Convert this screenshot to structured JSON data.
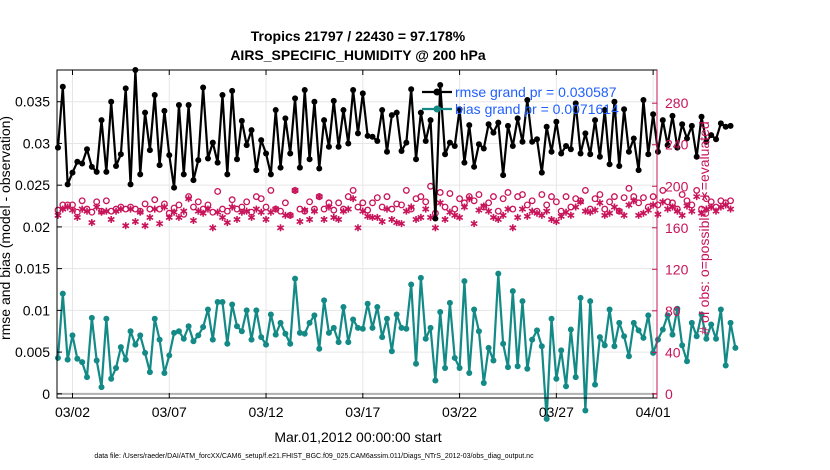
{
  "chart_data": {
    "type": "line",
    "title_line1": "Tropics 21797 / 22430 = 97.178%",
    "title_line2": "AIRS_SPECIFIC_HUMIDITY @ 200 hPa",
    "xlabel": "Mar.01,2012 00:00:00 start",
    "ylabel_left": "rmse and bias (model - observation)",
    "ylabel_right": "# of obs: o=possible; ∗=evaluated",
    "xtick_labels": [
      "03/02",
      "03/07",
      "03/12",
      "03/17",
      "03/22",
      "03/27",
      "04/01"
    ],
    "xtick_days": [
      1,
      6,
      11,
      16,
      21,
      26,
      31
    ],
    "xlim_days": [
      0.2,
      31.2
    ],
    "yleft_ticks": [
      "0",
      "0.005",
      "0.01",
      "0.015",
      "0.02",
      "0.025",
      "0.03",
      "0.035"
    ],
    "yleft_values": [
      0,
      0.005,
      0.01,
      0.015,
      0.02,
      0.025,
      0.03,
      0.035
    ],
    "yleft_lim": [
      -0.0005,
      0.0388
    ],
    "yright_ticks": [
      "0",
      "40",
      "80",
      "120",
      "160",
      "200",
      "240",
      "280"
    ],
    "yright_values": [
      0,
      40,
      80,
      120,
      160,
      200,
      240,
      280
    ],
    "yright_lim": [
      -4,
      312
    ],
    "legend": [
      {
        "label": "rmse grand pr = 0.030587",
        "color": "#000000"
      },
      {
        "label": "bias grand pr = 0.0071614",
        "color": "#138a86"
      }
    ],
    "footer": "data file: /Users/raeder/DAI/ATM_forcXX/CAM6_setup/f.e21.FHIST_BGC.f09_025.CAM6assim.011/Diags_NTrS_2012-03/obs_diag_output.nc",
    "colors": {
      "rmse": "#000000",
      "bias": "#138a86",
      "obs": "#c8145a",
      "zero": "#b0b0b0"
    },
    "series": [
      {
        "name": "rmse",
        "x_start": 0.25,
        "x_step": 0.25,
        "values": [
          0.0295,
          0.0368,
          0.0251,
          0.0265,
          0.0278,
          0.0276,
          0.0293,
          0.0272,
          0.0266,
          0.0328,
          0.0266,
          0.035,
          0.0273,
          0.0287,
          0.0366,
          0.0251,
          0.0388,
          0.0263,
          0.0337,
          0.0292,
          0.0358,
          0.0274,
          0.0339,
          0.0286,
          0.0247,
          0.0346,
          0.0263,
          0.0346,
          0.0256,
          0.028,
          0.0367,
          0.0282,
          0.0301,
          0.0277,
          0.0358,
          0.0263,
          0.0363,
          0.0281,
          0.0327,
          0.0298,
          0.0316,
          0.0268,
          0.0304,
          0.0288,
          0.0263,
          0.034,
          0.0271,
          0.033,
          0.0288,
          0.0354,
          0.0271,
          0.0364,
          0.0281,
          0.035,
          0.027,
          0.0328,
          0.0296,
          0.0351,
          0.0296,
          0.034,
          0.03,
          0.0364,
          0.0312,
          0.036,
          0.0309,
          0.0308,
          0.0303,
          0.034,
          0.029,
          0.0334,
          0.0337,
          0.0291,
          0.0301,
          0.0365,
          0.0281,
          0.0337,
          0.0303,
          0.0328,
          0.021,
          0.037,
          0.0287,
          0.0301,
          0.0297,
          0.0341,
          0.0277,
          0.0322,
          0.0272,
          0.0299,
          0.0294,
          0.0323,
          0.0313,
          0.0325,
          0.0262,
          0.0321,
          0.0297,
          0.033,
          0.0302,
          0.0352,
          0.0302,
          0.0305,
          0.0265,
          0.032,
          0.029,
          0.0326,
          0.0288,
          0.0297,
          0.0293,
          0.0348,
          0.0288,
          0.0312,
          0.0287,
          0.0328,
          0.0284,
          0.034,
          0.0275,
          0.035,
          0.0273,
          0.0341,
          0.029,
          0.0306,
          0.0268,
          0.0352,
          0.0287,
          0.0335,
          0.029,
          0.0328,
          0.0298,
          0.0333,
          0.0295,
          0.0323,
          0.0306,
          0.0321,
          0.0284,
          0.0332,
          0.0302,
          0.031,
          0.0305,
          0.0324,
          0.032,
          0.0321
        ]
      },
      {
        "name": "bias",
        "x_start": 0.25,
        "x_step": 0.25,
        "values": [
          0.0043,
          0.012,
          0.0041,
          0.007,
          0.0042,
          0.0038,
          0.002,
          0.0091,
          0.004,
          0.0008,
          0.009,
          0.0018,
          0.0031,
          0.0056,
          0.0041,
          0.0075,
          0.0059,
          0.007,
          0.0049,
          0.0026,
          0.009,
          0.0065,
          0.0025,
          0.0046,
          0.0073,
          0.0075,
          0.0066,
          0.0081,
          0.0063,
          0.007,
          0.008,
          0.0101,
          0.0065,
          0.011,
          0.011,
          0.006,
          0.0107,
          0.0081,
          0.0075,
          0.01,
          0.0065,
          0.01,
          0.0068,
          0.0059,
          0.0095,
          0.0071,
          0.0085,
          0.0072,
          0.006,
          0.0138,
          0.0073,
          0.0072,
          0.0085,
          0.0094,
          0.0054,
          0.0112,
          0.0073,
          0.0079,
          0.0062,
          0.0104,
          0.0062,
          0.0089,
          0.0079,
          0.0078,
          0.0108,
          0.0079,
          0.0104,
          0.0068,
          0.009,
          0.0051,
          0.0095,
          0.0079,
          0.0078,
          0.0131,
          0.0036,
          0.0139,
          0.0066,
          0.0079,
          0.0016,
          0.0098,
          0.0031,
          0.0109,
          0.0043,
          0.0031,
          0.0135,
          0.0025,
          0.0101,
          0.0075,
          0.0013,
          0.0055,
          0.004,
          0.0144,
          0.006,
          0.0032,
          0.0123,
          0.0033,
          0.0111,
          0.003,
          0.0065,
          0.0076,
          0.0057,
          -0.003,
          0.009,
          0.0018,
          0.0052,
          0.0009,
          0.0077,
          0.002,
          0.0115,
          -0.002,
          0.0111,
          0.0011,
          0.0068,
          0.0058,
          0.0101,
          0.0057,
          0.0085,
          0.0069,
          0.0045,
          0.0085,
          0.0076,
          0.0067,
          0.0094,
          0.0049,
          0.0065,
          0.0077,
          0.0094,
          0.0071,
          0.0102,
          0.0058,
          0.0039,
          0.0085,
          0.0069,
          0.0095,
          0.0066,
          0.0083,
          0.0066,
          0.0101,
          0.0034,
          0.0085,
          0.0055
        ]
      },
      {
        "name": "obs_possible",
        "x_start": 0.25,
        "x_step": 0.25,
        "values": [
          177,
          182,
          182,
          182,
          175,
          186,
          178,
          175,
          185,
          176,
          186,
          176,
          178,
          180,
          178,
          180,
          178,
          176,
          183,
          178,
          187,
          178,
          183,
          174,
          179,
          182,
          173,
          190,
          180,
          185,
          178,
          182,
          175,
          195,
          178,
          176,
          187,
          178,
          180,
          185,
          175,
          190,
          188,
          180,
          196,
          178,
          176,
          184,
          172,
          196,
          178,
          176,
          185,
          178,
          190,
          178,
          184,
          177,
          184,
          178,
          190,
          196,
          180,
          184,
          177,
          184,
          189,
          180,
          190,
          178,
          183,
          182,
          196,
          178,
          188,
          190,
          185,
          200,
          174,
          194,
          180,
          193,
          178,
          188,
          184,
          190,
          186,
          192,
          180,
          184,
          190,
          176,
          188,
          194,
          178,
          190,
          192,
          182,
          186,
          176,
          192,
          182,
          190,
          185,
          176,
          190,
          180,
          188,
          186,
          196,
          178,
          188,
          192,
          178,
          185,
          190,
          176,
          189,
          198,
          190,
          184,
          189,
          180,
          190,
          182,
          196,
          185,
          184,
          178,
          192,
          186,
          182,
          196,
          178,
          188,
          185,
          180,
          186,
          184,
          186
        ]
      },
      {
        "name": "obs_evaluated",
        "x_start": 0.25,
        "x_step": 0.25,
        "values": [
          172,
          178,
          180,
          177,
          170,
          178,
          176,
          165,
          180,
          175,
          176,
          168,
          176,
          178,
          162,
          178,
          166,
          175,
          162,
          170,
          178,
          164,
          180,
          170,
          175,
          170,
          176,
          188,
          167,
          176,
          174,
          178,
          160,
          175,
          170,
          165,
          180,
          168,
          175,
          176,
          170,
          178,
          175,
          168,
          175,
          178,
          160,
          172,
          172,
          196,
          166,
          177,
          168,
          176,
          190,
          168,
          180,
          170,
          168,
          176,
          178,
          188,
          160,
          176,
          171,
          170,
          170,
          166,
          178,
          168,
          165,
          164,
          176,
          180,
          168,
          170,
          178,
          170,
          160,
          184,
          168,
          175,
          172,
          170,
          180,
          188,
          164,
          177,
          181,
          176,
          170,
          168,
          172,
          178,
          160,
          170,
          178,
          171,
          176,
          174,
          172,
          176,
          168,
          166,
          171,
          175,
          172,
          180,
          185,
          176,
          175,
          177,
          184,
          172,
          174,
          180,
          176,
          172,
          182,
          186,
          172,
          174,
          177,
          182,
          173,
          185,
          178,
          180,
          176,
          172,
          181,
          176,
          190,
          174,
          178,
          180,
          176,
          180,
          182,
          178
        ]
      }
    ]
  }
}
